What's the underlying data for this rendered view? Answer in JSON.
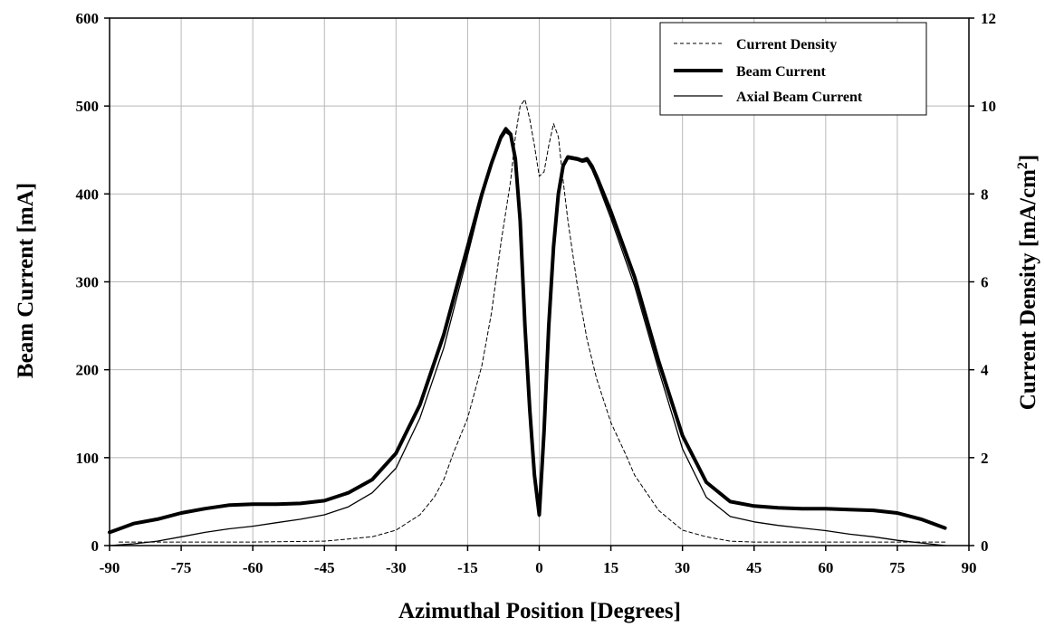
{
  "chart_data": {
    "type": "line",
    "title": "",
    "xlabel": "Azimuthal Position [Degrees]",
    "ylabel": "Beam Current [mA]",
    "y2label": "Current Density [mA/cm",
    "y2label_sup": "2",
    "y2label_end": "]",
    "xlim": [
      -90,
      90
    ],
    "ylim": [
      0,
      600
    ],
    "y2lim": [
      0,
      12
    ],
    "xticks": [
      "-90",
      "-75",
      "-60",
      "-45",
      "-30",
      "-15",
      "0",
      "15",
      "30",
      "45",
      "60",
      "75",
      "90"
    ],
    "yticks": [
      "0",
      "100",
      "200",
      "300",
      "400",
      "500",
      "600"
    ],
    "y2ticks": [
      "0",
      "2",
      "4",
      "6",
      "8",
      "10",
      "12"
    ],
    "grid": true,
    "legend_position": "top-right",
    "series": [
      {
        "name": "Current Density",
        "axis": "right",
        "style": "dashed-thin",
        "color": "#000000",
        "x": [
          -88,
          -75,
          -60,
          -45,
          -35,
          -30,
          -25,
          -22,
          -20,
          -18,
          -15,
          -12,
          -10,
          -8,
          -6,
          -5,
          -4,
          -3,
          -2,
          -1,
          0,
          1,
          2,
          3,
          4,
          5,
          6,
          8,
          10,
          12,
          15,
          18,
          20,
          25,
          30,
          35,
          40,
          45,
          60,
          75,
          85
        ],
        "y": [
          0.08,
          0.08,
          0.08,
          0.1,
          0.2,
          0.35,
          0.7,
          1.1,
          1.5,
          2.1,
          2.9,
          4.1,
          5.3,
          6.9,
          8.3,
          9.3,
          10.0,
          10.15,
          9.7,
          9.1,
          8.4,
          8.5,
          9.1,
          9.6,
          9.3,
          8.3,
          7.4,
          5.9,
          4.7,
          3.8,
          2.8,
          2.1,
          1.6,
          0.8,
          0.35,
          0.2,
          0.1,
          0.08,
          0.08,
          0.08,
          0.08
        ]
      },
      {
        "name": "Beam Current",
        "axis": "left",
        "style": "thick",
        "color": "#000000",
        "x": [
          -90,
          -85,
          -80,
          -75,
          -70,
          -65,
          -60,
          -55,
          -50,
          -45,
          -40,
          -35,
          -30,
          -25,
          -20,
          -15,
          -12,
          -10,
          -8,
          -7,
          -6,
          -5,
          -4,
          -3,
          -2,
          -1,
          0,
          1,
          2,
          3,
          4,
          5,
          6,
          7,
          8,
          9,
          10,
          11,
          12,
          15,
          20,
          25,
          30,
          35,
          40,
          45,
          50,
          55,
          60,
          65,
          70,
          75,
          80,
          85
        ],
        "y": [
          15,
          25,
          30,
          37,
          42,
          46,
          47,
          47,
          48,
          51,
          60,
          75,
          105,
          160,
          240,
          340,
          400,
          435,
          465,
          474,
          468,
          440,
          370,
          250,
          155,
          80,
          35,
          130,
          250,
          340,
          400,
          432,
          442,
          441,
          440,
          438,
          440,
          432,
          420,
          380,
          305,
          210,
          125,
          72,
          50,
          45,
          43,
          42,
          42,
          41,
          40,
          37,
          30,
          20
        ]
      },
      {
        "name": "Axial Beam Current",
        "axis": "left",
        "style": "thin",
        "color": "#000000",
        "x": [
          -90,
          -85,
          -80,
          -75,
          -70,
          -65,
          -60,
          -55,
          -50,
          -45,
          -40,
          -35,
          -30,
          -25,
          -20,
          -15,
          -12,
          -10,
          -8,
          -7,
          -6,
          -5,
          -4,
          -3,
          -2,
          -1,
          0,
          1,
          2,
          3,
          4,
          5,
          6,
          7,
          8,
          9,
          10,
          11,
          12,
          15,
          20,
          25,
          30,
          35,
          40,
          45,
          50,
          55,
          60,
          65,
          70,
          75,
          80,
          85
        ],
        "y": [
          0,
          2,
          5,
          10,
          15,
          19,
          22,
          26,
          30,
          35,
          44,
          60,
          88,
          145,
          225,
          330,
          395,
          432,
          462,
          470,
          466,
          438,
          368,
          248,
          153,
          78,
          33,
          128,
          248,
          338,
          398,
          430,
          440,
          439,
          438,
          436,
          437,
          428,
          415,
          372,
          295,
          200,
          110,
          55,
          33,
          27,
          23,
          20,
          17,
          13,
          10,
          6,
          3,
          0
        ]
      }
    ]
  }
}
